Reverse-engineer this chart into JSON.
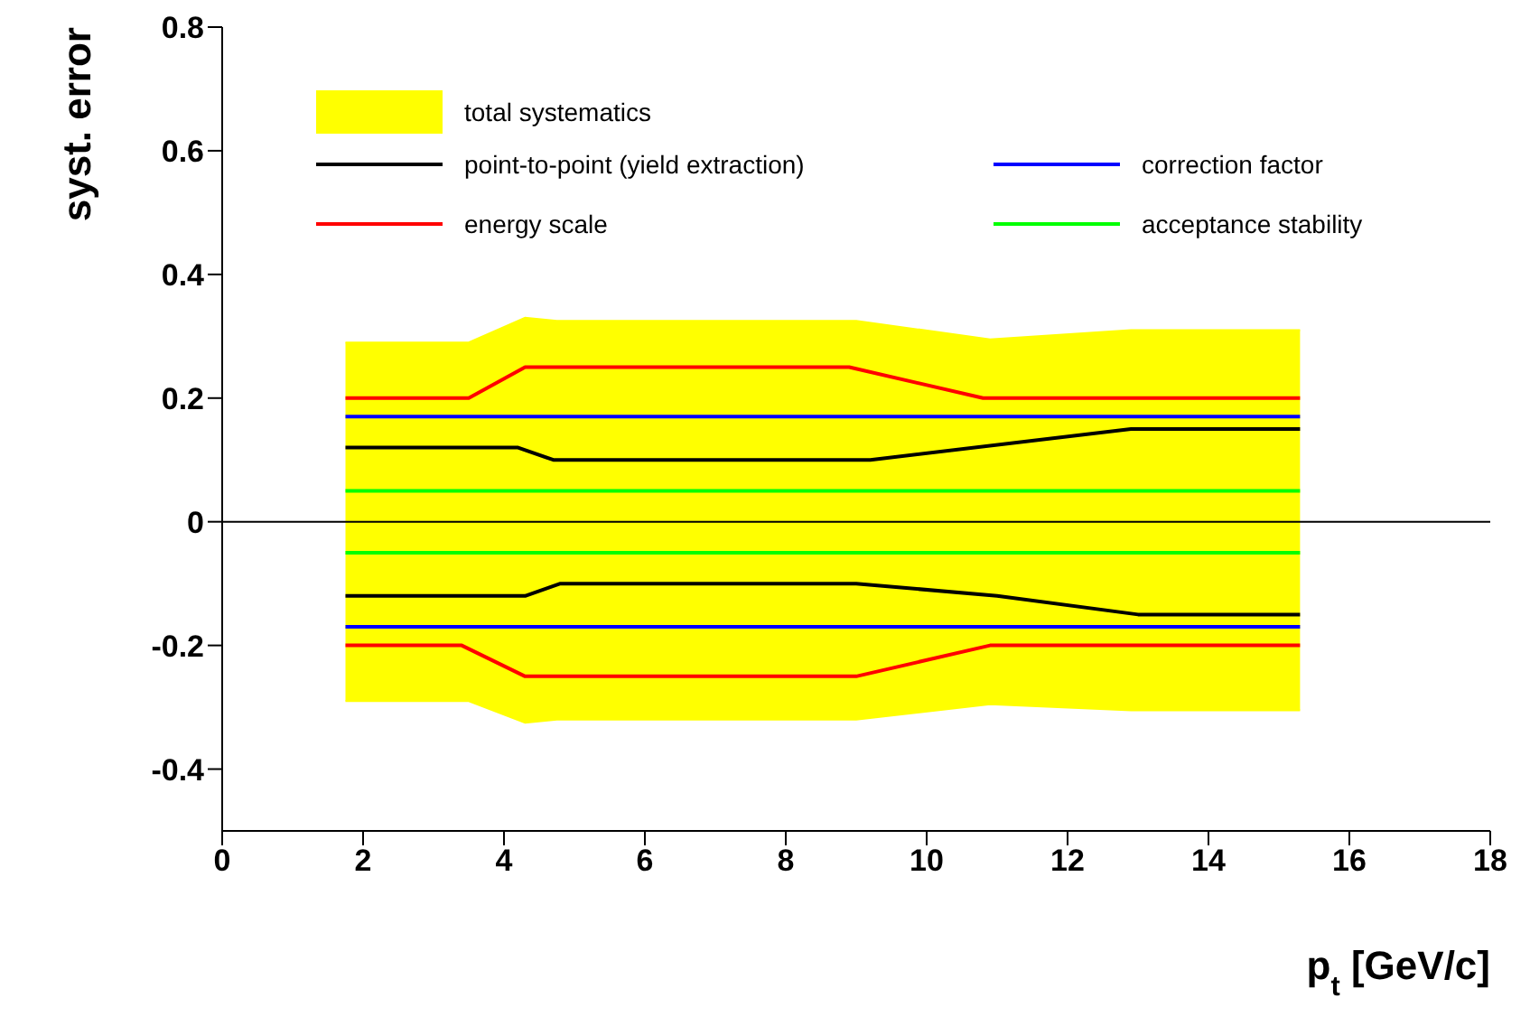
{
  "chart_data": {
    "type": "line",
    "xlabel": "p$_{t}$ [GeV/c]",
    "ylabel": "syst. error",
    "xlim": [
      0,
      18
    ],
    "xticks": [
      0,
      2,
      4,
      6,
      8,
      10,
      12,
      14,
      16,
      18
    ],
    "ylim": [
      -0.5,
      0.8
    ],
    "yticks": [
      -0.4,
      -0.2,
      0,
      0.2,
      0.4,
      0.6,
      0.8
    ],
    "legend": "top left",
    "ref_lines": [
      {
        "axis": "y",
        "value": 0,
        "color": "#000000"
      }
    ],
    "series": [
      {
        "name": "total systematics",
        "type": "area",
        "color": "#ffff00",
        "x": [
          1.75,
          3.5,
          4.3,
          4.75,
          9,
          10.9,
          12.9,
          15.3
        ],
        "values": [
          0.29,
          0.29,
          0.33,
          0.325,
          0.325,
          0.295,
          0.31,
          0.31
        ]
      },
      {
        "type": "area",
        "color": "#ffff00",
        "x": [
          1.75,
          3.5,
          4.3,
          4.75,
          9,
          10.9,
          12.9,
          15.3
        ],
        "values": [
          -0.29,
          -0.29,
          -0.325,
          -0.32,
          -0.32,
          -0.295,
          -0.305,
          -0.305
        ]
      },
      {
        "name": "point-to-point (yield extraction)",
        "color": "#000000",
        "x": [
          1.75,
          4.2,
          4.7,
          9.2,
          12.9,
          15.3
        ],
        "values": [
          0.12,
          0.12,
          0.1,
          0.1,
          0.15,
          0.15
        ]
      },
      {
        "name": "energy scale",
        "color": "#ff0000",
        "x": [
          1.75,
          3.5,
          4.3,
          8.9,
          10.8,
          15.3
        ],
        "values": [
          0.2,
          0.2,
          0.25,
          0.25,
          0.2,
          0.2
        ]
      },
      {
        "name": "correction factor",
        "color": "#0000ff",
        "x": [
          1.75,
          15.3
        ],
        "values": [
          0.17,
          0.17
        ]
      },
      {
        "name": "acceptance stability",
        "color": "#00ff00",
        "x": [
          1.75,
          15.3
        ],
        "values": [
          0.05,
          0.05
        ]
      },
      {
        "color": "#000000",
        "x": [
          1.75,
          4.3,
          4.8,
          9,
          11,
          13,
          15.3
        ],
        "values": [
          -0.12,
          -0.12,
          -0.1,
          -0.1,
          -0.12,
          -0.15,
          -0.15
        ]
      },
      {
        "color": "#ff0000",
        "x": [
          1.75,
          3.4,
          4.3,
          9,
          10.9,
          15.3
        ],
        "values": [
          -0.2,
          -0.2,
          -0.25,
          -0.25,
          -0.2,
          -0.2
        ]
      },
      {
        "color": "#0000ff",
        "x": [
          1.75,
          15.3
        ],
        "values": [
          -0.17,
          -0.17
        ]
      },
      {
        "color": "#00ff00",
        "x": [
          1.75,
          15.3
        ],
        "values": [
          -0.05,
          -0.05
        ]
      }
    ]
  }
}
